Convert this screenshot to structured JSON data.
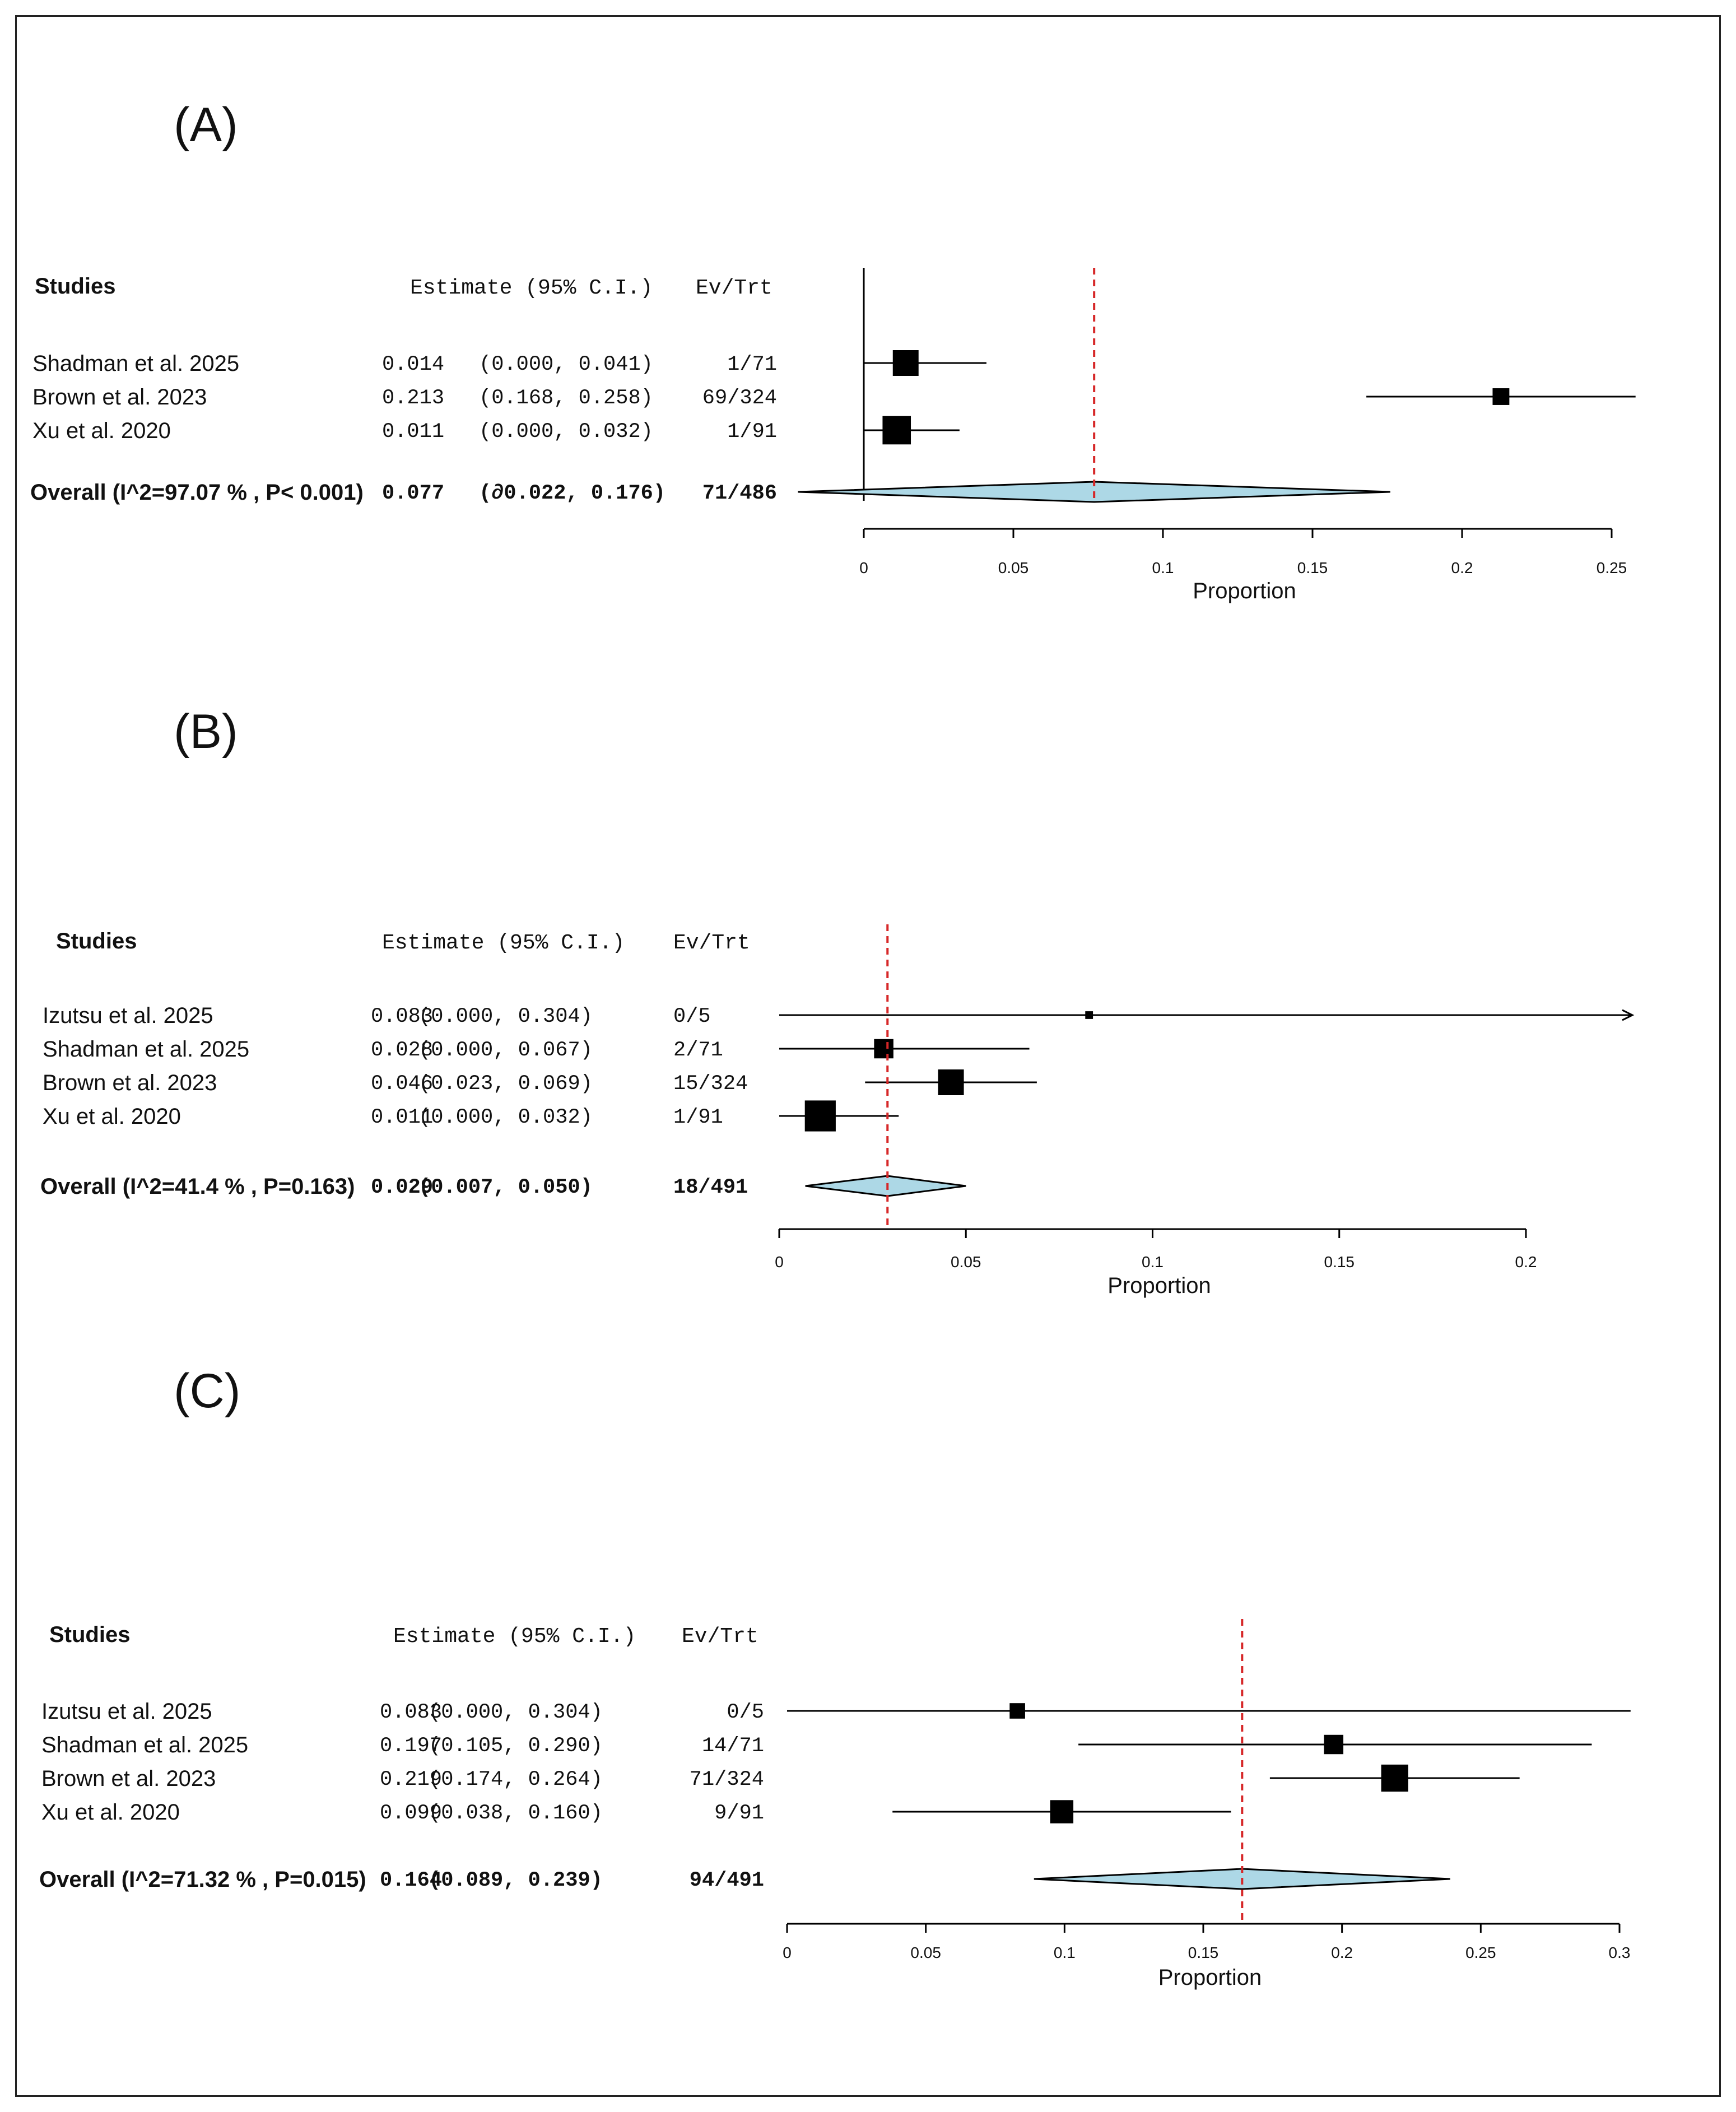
{
  "colors": {
    "pooled_line": "#d62728",
    "diamond_fill": "#add8e6",
    "marks": "#000000"
  },
  "chart_data": [
    {
      "type": "forest",
      "panel": "(A)",
      "headers": {
        "studies": "Studies",
        "estimate": "Estimate (95% C.I.)",
        "ev_trt": "Ev/Trt"
      },
      "studies": [
        {
          "name": "Shadman et al. 2025",
          "estimate": 0.014,
          "ci_low": 0.0,
          "ci_high": 0.041,
          "estimate_text": "0.014",
          "ci_text": "(0.000, 0.041)",
          "ev_trt": "1/71",
          "weight": 1.0
        },
        {
          "name": "Brown et al. 2023",
          "estimate": 0.213,
          "ci_low": 0.168,
          "ci_high": 0.258,
          "estimate_text": "0.213",
          "ci_text": "(0.168, 0.258)",
          "ev_trt": "69/324",
          "weight": 0.65
        },
        {
          "name": "Xu et al. 2020",
          "estimate": 0.011,
          "ci_low": 0.0,
          "ci_high": 0.032,
          "estimate_text": "0.011",
          "ci_text": "(0.000, 0.032)",
          "ev_trt": "1/91",
          "weight": 1.1
        }
      ],
      "overall": {
        "label": "Overall (I^2=97.07 % , P< 0.001)",
        "estimate": 0.077,
        "ci_low": -0.022,
        "ci_high": 0.176,
        "estimate_text": "0.077",
        "ci_text": "(∂0.022, 0.176)",
        "ev_trt": "71/486"
      },
      "xlabel": "Proportion",
      "xlim": [
        0,
        0.25
      ],
      "ticks": [
        0,
        0.05,
        0.1,
        0.15,
        0.2,
        0.25
      ],
      "tick_labels": [
        "0",
        "0.05",
        "0.1",
        "0.15",
        "0.2",
        "0.25"
      ]
    },
    {
      "type": "forest",
      "panel": "(B)",
      "headers": {
        "studies": "Studies",
        "estimate": "Estimate (95% C.I.)",
        "ev_trt": "Ev/Trt"
      },
      "studies": [
        {
          "name": "Izutsu et al. 2025",
          "estimate": 0.083,
          "ci_low": 0.0,
          "ci_high": 0.304,
          "estimate_text": "0.083",
          "ci_text": "(0.000, 0.304)",
          "ev_trt": "0/5",
          "weight": 0.3,
          "arrow_right": true
        },
        {
          "name": "Shadman et al. 2025",
          "estimate": 0.028,
          "ci_low": 0.0,
          "ci_high": 0.067,
          "estimate_text": "0.028",
          "ci_text": "(0.000, 0.067)",
          "ev_trt": "2/71",
          "weight": 0.75
        },
        {
          "name": "Brown et al. 2023",
          "estimate": 0.046,
          "ci_low": 0.023,
          "ci_high": 0.069,
          "estimate_text": "0.046",
          "ci_text": "(0.023, 0.069)",
          "ev_trt": "15/324",
          "weight": 1.0
        },
        {
          "name": "Xu et al. 2020",
          "estimate": 0.011,
          "ci_low": 0.0,
          "ci_high": 0.032,
          "estimate_text": "0.011",
          "ci_text": "(0.000, 0.032)",
          "ev_trt": "1/91",
          "weight": 1.2
        }
      ],
      "overall": {
        "label": "Overall (I^2=41.4 % , P=0.163)",
        "estimate": 0.029,
        "ci_low": 0.007,
        "ci_high": 0.05,
        "estimate_text": "0.029",
        "ci_text": "(0.007, 0.050)",
        "ev_trt": "18/491"
      },
      "xlabel": "Proportion",
      "xlim": [
        0,
        0.2
      ],
      "ticks": [
        0,
        0.05,
        0.1,
        0.15,
        0.2
      ],
      "tick_labels": [
        "0",
        "0.05",
        "0.1",
        "0.15",
        "0.2"
      ]
    },
    {
      "type": "forest",
      "panel": "(C)",
      "headers": {
        "studies": "Studies",
        "estimate": "Estimate (95% C.I.)",
        "ev_trt": "Ev/Trt"
      },
      "studies": [
        {
          "name": "Izutsu et al. 2025",
          "estimate": 0.083,
          "ci_low": 0.0,
          "ci_high": 0.304,
          "estimate_text": "0.083",
          "ci_text": "(0.000, 0.304)",
          "ev_trt": "0/5",
          "weight": 0.6
        },
        {
          "name": "Shadman et al. 2025",
          "estimate": 0.197,
          "ci_low": 0.105,
          "ci_high": 0.29,
          "estimate_text": "0.197",
          "ci_text": "(0.105, 0.290)",
          "ev_trt": "14/71",
          "weight": 0.75
        },
        {
          "name": "Brown et al. 2023",
          "estimate": 0.219,
          "ci_low": 0.174,
          "ci_high": 0.264,
          "estimate_text": "0.219",
          "ci_text": "(0.174, 0.264)",
          "ev_trt": "71/324",
          "weight": 1.05
        },
        {
          "name": "Xu et al. 2020",
          "estimate": 0.099,
          "ci_low": 0.038,
          "ci_high": 0.16,
          "estimate_text": "0.099",
          "ci_text": "(0.038, 0.160)",
          "ev_trt": "9/91",
          "weight": 0.9
        }
      ],
      "overall": {
        "label": "Overall (I^2=71.32 % , P=0.015)",
        "estimate": 0.164,
        "ci_low": 0.089,
        "ci_high": 0.239,
        "estimate_text": "0.164",
        "ci_text": "(0.089, 0.239)",
        "ev_trt": "94/491"
      },
      "xlabel": "Proportion",
      "xlim": [
        0,
        0.3
      ],
      "ticks": [
        0,
        0.05,
        0.1,
        0.15,
        0.2,
        0.25,
        0.3
      ],
      "tick_labels": [
        "0",
        "0.05",
        "0.1",
        "0.15",
        "0.2",
        "0.25",
        "0.3"
      ]
    }
  ]
}
